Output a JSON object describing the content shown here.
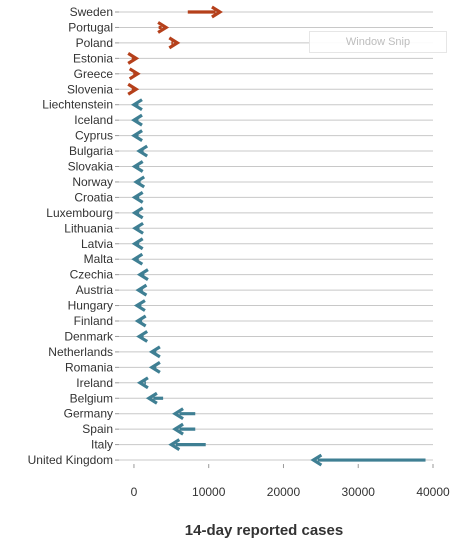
{
  "chart_data": {
    "type": "arrow",
    "xlabel": "14-day reported cases",
    "xlim": [
      -2000,
      40000
    ],
    "x_ticks": [
      0,
      10000,
      20000,
      30000,
      40000
    ],
    "grid": "horizontal",
    "colors": {
      "increase": "#b5401b",
      "decrease": "#3f7f93"
    },
    "countries": [
      {
        "name": "Sweden",
        "from": 7200,
        "to": 11500,
        "direction": "increase"
      },
      {
        "name": "Portugal",
        "from": 3300,
        "to": 4300,
        "direction": "increase"
      },
      {
        "name": "Poland",
        "from": 5000,
        "to": 5800,
        "direction": "increase"
      },
      {
        "name": "Estonia",
        "from": 100,
        "to": 300,
        "direction": "increase"
      },
      {
        "name": "Greece",
        "from": 300,
        "to": 500,
        "direction": "increase"
      },
      {
        "name": "Slovenia",
        "from": 100,
        "to": 300,
        "direction": "increase"
      },
      {
        "name": "Liechtenstein",
        "from": 20,
        "to": 5,
        "direction": "decrease"
      },
      {
        "name": "Iceland",
        "from": 50,
        "to": 10,
        "direction": "decrease"
      },
      {
        "name": "Cyprus",
        "from": 100,
        "to": 20,
        "direction": "decrease"
      },
      {
        "name": "Bulgaria",
        "from": 1000,
        "to": 700,
        "direction": "decrease"
      },
      {
        "name": "Slovakia",
        "from": 300,
        "to": 100,
        "direction": "decrease"
      },
      {
        "name": "Norway",
        "from": 500,
        "to": 300,
        "direction": "decrease"
      },
      {
        "name": "Croatia",
        "from": 300,
        "to": 100,
        "direction": "decrease"
      },
      {
        "name": "Luxembourg",
        "from": 300,
        "to": 100,
        "direction": "decrease"
      },
      {
        "name": "Lithuania",
        "from": 400,
        "to": 150,
        "direction": "decrease"
      },
      {
        "name": "Latvia",
        "from": 300,
        "to": 100,
        "direction": "decrease"
      },
      {
        "name": "Malta",
        "from": 200,
        "to": 50,
        "direction": "decrease"
      },
      {
        "name": "Czechia",
        "from": 1200,
        "to": 800,
        "direction": "decrease"
      },
      {
        "name": "Austria",
        "from": 1000,
        "to": 600,
        "direction": "decrease"
      },
      {
        "name": "Hungary",
        "from": 700,
        "to": 400,
        "direction": "decrease"
      },
      {
        "name": "Finland",
        "from": 800,
        "to": 500,
        "direction": "decrease"
      },
      {
        "name": "Denmark",
        "from": 1000,
        "to": 700,
        "direction": "decrease"
      },
      {
        "name": "Netherlands",
        "from": 2800,
        "to": 2400,
        "direction": "decrease"
      },
      {
        "name": "Romania",
        "from": 2800,
        "to": 2400,
        "direction": "decrease"
      },
      {
        "name": "Ireland",
        "from": 1600,
        "to": 800,
        "direction": "decrease"
      },
      {
        "name": "Belgium",
        "from": 3900,
        "to": 2000,
        "direction": "decrease"
      },
      {
        "name": "Germany",
        "from": 8200,
        "to": 5500,
        "direction": "decrease"
      },
      {
        "name": "Spain",
        "from": 8200,
        "to": 5500,
        "direction": "decrease"
      },
      {
        "name": "Italy",
        "from": 9600,
        "to": 5000,
        "direction": "decrease"
      },
      {
        "name": "United Kingdom",
        "from": 39000,
        "to": 24000,
        "direction": "decrease"
      }
    ]
  },
  "overlay": {
    "label": "Window Snip"
  }
}
